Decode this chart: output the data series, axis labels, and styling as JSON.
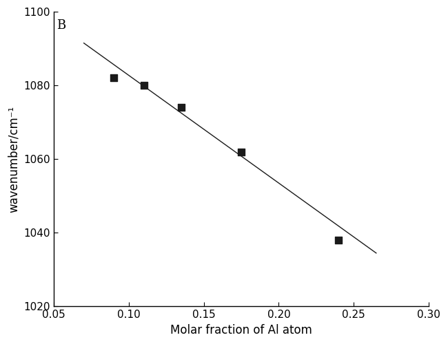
{
  "scatter_x": [
    0.09,
    0.11,
    0.135,
    0.175,
    0.24
  ],
  "scatter_y": [
    1082,
    1080,
    1074,
    1062,
    1038
  ],
  "line_x": [
    0.07,
    0.265
  ],
  "line_y": [
    1091.5,
    1034.5
  ],
  "xlabel": "Molar fraction of Al atom",
  "ylabel": "wavenumber/cm⁻¹",
  "label_B": "B",
  "xlim": [
    0.05,
    0.3
  ],
  "ylim": [
    1020,
    1100
  ],
  "xticks": [
    0.05,
    0.1,
    0.15,
    0.2,
    0.25,
    0.3
  ],
  "yticks": [
    1020,
    1040,
    1060,
    1080,
    1100
  ],
  "marker_color": "#1a1a1a",
  "line_color": "#1a1a1a",
  "background_color": "#ffffff",
  "marker_size": 7,
  "line_width": 1.0,
  "xlabel_fontsize": 12,
  "ylabel_fontsize": 12,
  "tick_fontsize": 11,
  "label_fontsize": 13
}
